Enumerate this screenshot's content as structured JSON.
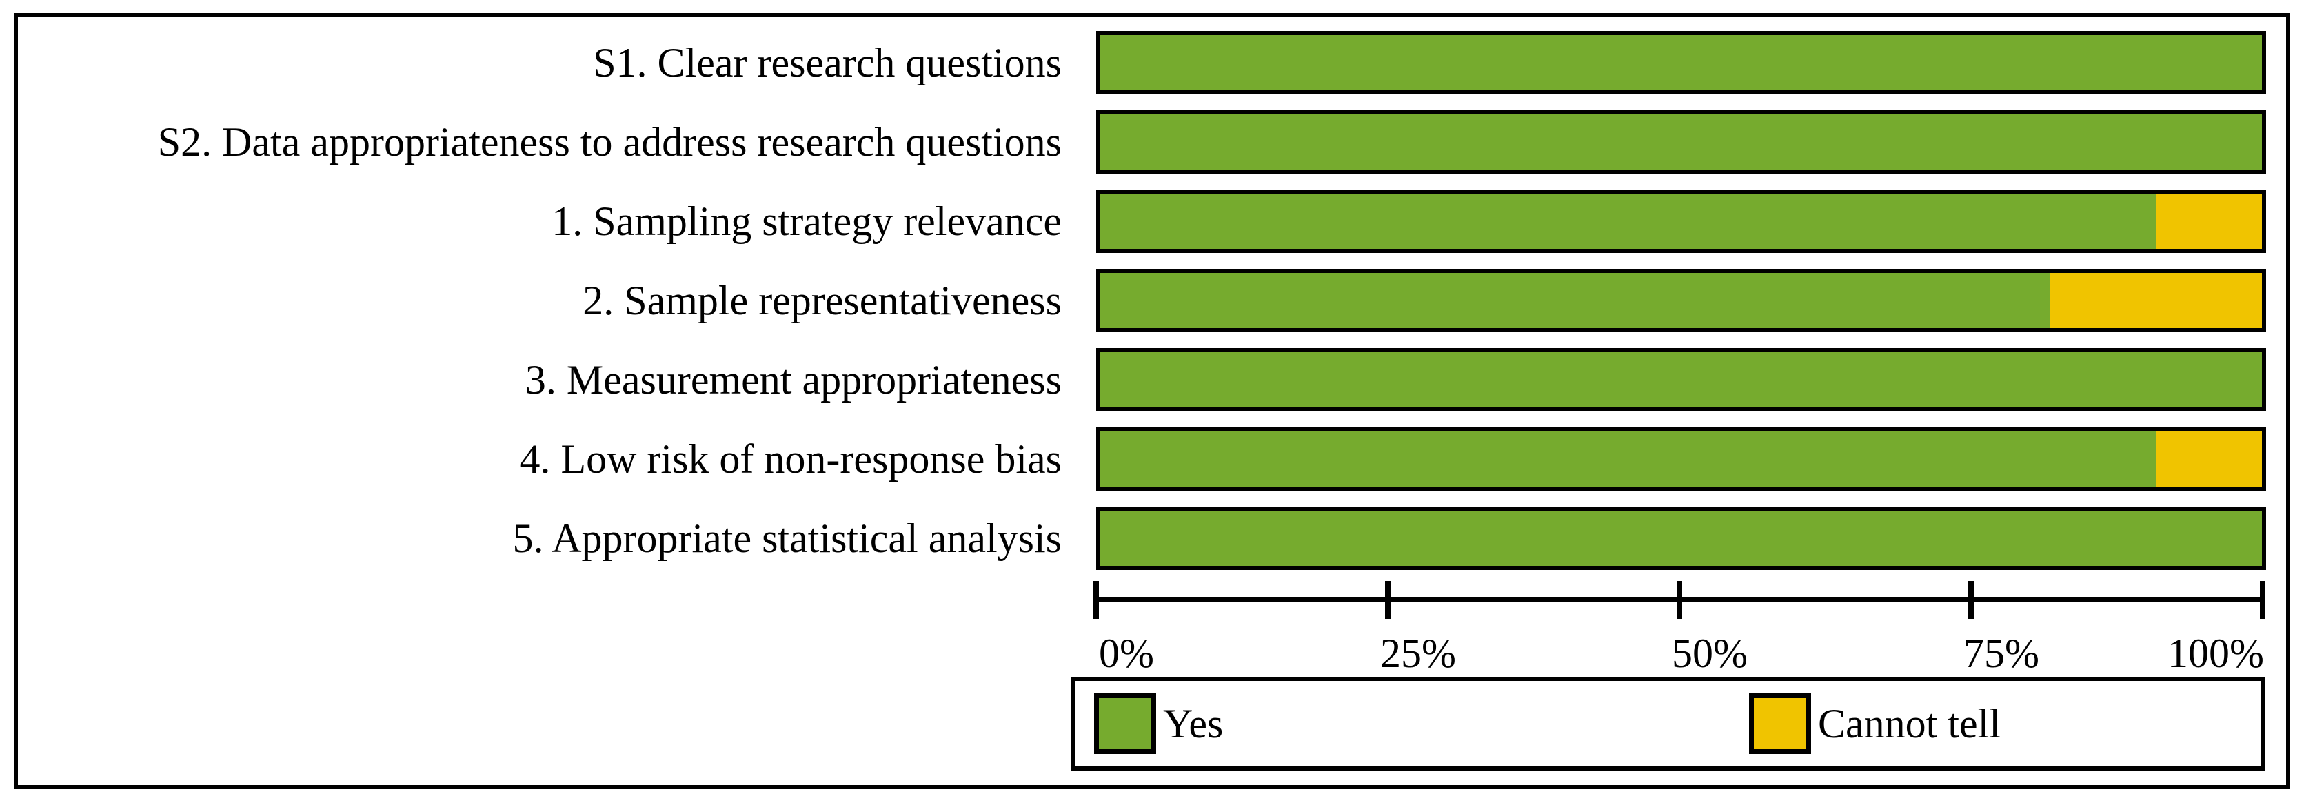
{
  "chart_data": {
    "type": "bar",
    "orientation": "horizontal",
    "stacked": true,
    "title": "",
    "categories": [
      "S1. Clear research questions",
      "S2. Data appropriateness to address research questions",
      "1. Sampling strategy relevance",
      "2. Sample representativeness",
      "3. Measurement appropriateness",
      "4. Low risk of non-response bias",
      "5. Appropriate statistical analysis"
    ],
    "series": [
      {
        "name": "Yes",
        "color": "#76AB2E",
        "values": [
          100,
          100,
          90.9,
          81.8,
          100,
          90.9,
          100
        ]
      },
      {
        "name": "Cannot tell",
        "color": "#F0C400",
        "values": [
          0,
          0,
          9.1,
          18.2,
          0,
          9.1,
          0
        ]
      }
    ],
    "xlim": [
      0,
      100
    ],
    "x_tick_values": [
      0,
      25,
      50,
      75,
      100
    ],
    "x_tick_labels": [
      "0%",
      "25%",
      "50%",
      "75%",
      "100%"
    ],
    "grid": false,
    "legend_position": "bottom-box",
    "bar_border_color": "#000000",
    "frame_border_color": "#000000"
  }
}
